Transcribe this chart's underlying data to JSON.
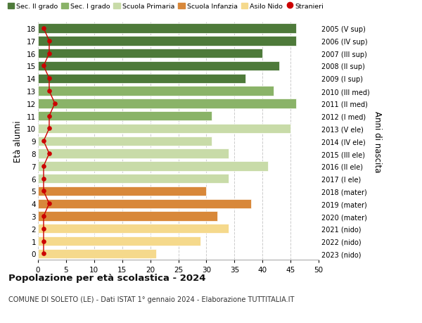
{
  "ages": [
    0,
    1,
    2,
    3,
    4,
    5,
    6,
    7,
    8,
    9,
    10,
    11,
    12,
    13,
    14,
    15,
    16,
    17,
    18
  ],
  "right_labels": [
    "2023 (nido)",
    "2022 (nido)",
    "2021 (nido)",
    "2020 (mater)",
    "2019 (mater)",
    "2018 (mater)",
    "2017 (I ele)",
    "2016 (II ele)",
    "2015 (III ele)",
    "2014 (IV ele)",
    "2013 (V ele)",
    "2012 (I med)",
    "2011 (II med)",
    "2010 (III med)",
    "2009 (I sup)",
    "2008 (II sup)",
    "2007 (III sup)",
    "2006 (IV sup)",
    "2005 (V sup)"
  ],
  "bar_values": [
    21,
    29,
    34,
    32,
    38,
    30,
    34,
    41,
    34,
    31,
    45,
    31,
    46,
    42,
    37,
    43,
    40,
    46,
    46
  ],
  "stranieri": [
    1,
    1,
    1,
    1,
    2,
    1,
    1,
    1,
    2,
    1,
    2,
    2,
    3,
    2,
    2,
    1,
    2,
    2,
    1
  ],
  "bar_colors": [
    "#f5d98c",
    "#f5d98c",
    "#f5d98c",
    "#d8883a",
    "#d8883a",
    "#d8883a",
    "#c8dba8",
    "#c8dba8",
    "#c8dba8",
    "#c8dba8",
    "#c8dba8",
    "#8ab368",
    "#8ab368",
    "#8ab368",
    "#4e7a3a",
    "#4e7a3a",
    "#4e7a3a",
    "#4e7a3a",
    "#4e7a3a"
  ],
  "legend_labels": [
    "Sec. II grado",
    "Sec. I grado",
    "Scuola Primaria",
    "Scuola Infanzia",
    "Asilo Nido",
    "Stranieri"
  ],
  "legend_colors": [
    "#4e7a3a",
    "#8ab368",
    "#c8dba8",
    "#d8883a",
    "#f5d98c",
    "#cc0000"
  ],
  "ylabel_left": "Età alunni",
  "ylabel_right": "Anni di nascita",
  "xlim": [
    0,
    50
  ],
  "xticks": [
    0,
    5,
    10,
    15,
    20,
    25,
    30,
    35,
    40,
    45,
    50
  ],
  "title": "Popolazione per età scolastica - 2024",
  "subtitle": "COMUNE DI SOLETO (LE) - Dati ISTAT 1° gennaio 2024 - Elaborazione TUTTITALIA.IT",
  "bg_color": "#ffffff",
  "grid_color": "#cccccc",
  "bar_height": 0.75,
  "stranieri_color": "#cc0000"
}
